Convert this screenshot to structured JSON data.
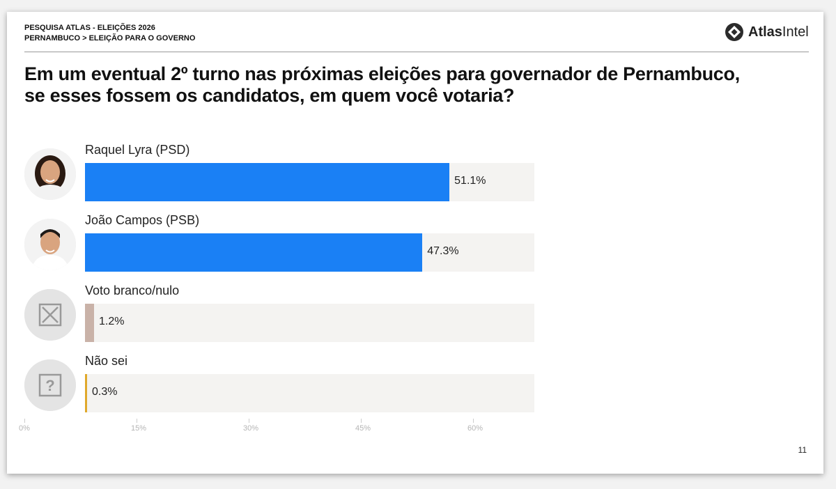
{
  "header": {
    "line1": "PESQUISA ATLAS - ELEIÇÕES 2026",
    "line2": "PERNAMBUCO > ELEIÇÃO PARA O GOVERNO",
    "logo_bold": "Atlas",
    "logo_light": "Intel"
  },
  "question": "Em um eventual 2º turno nas próximas eleições para governador de Pernambuco, se esses fossem os candidatos, em quem você votaria?",
  "page_number": "11",
  "colors": {
    "primary": "#1a80f5",
    "blank": "#c9b2a8",
    "unknown": "#e0a92b",
    "track": "#f4f3f1"
  },
  "chart_data": {
    "type": "bar",
    "orientation": "horizontal",
    "categories": [
      "Raquel Lyra (PSD)",
      "João Campos (PSB)",
      "Voto branco/nulo",
      "Não sei"
    ],
    "values": [
      51.1,
      47.3,
      1.2,
      0.3
    ],
    "value_labels": [
      "51.1%",
      "47.3%",
      "1.2%",
      "0.3%"
    ],
    "avatars": [
      "photo",
      "photo",
      "close-icon",
      "question-icon"
    ],
    "xlim": [
      0,
      60
    ],
    "x_ticks": [
      "0%",
      "15%",
      "30%",
      "45%",
      "60%"
    ],
    "grid": false,
    "legend": "none"
  }
}
